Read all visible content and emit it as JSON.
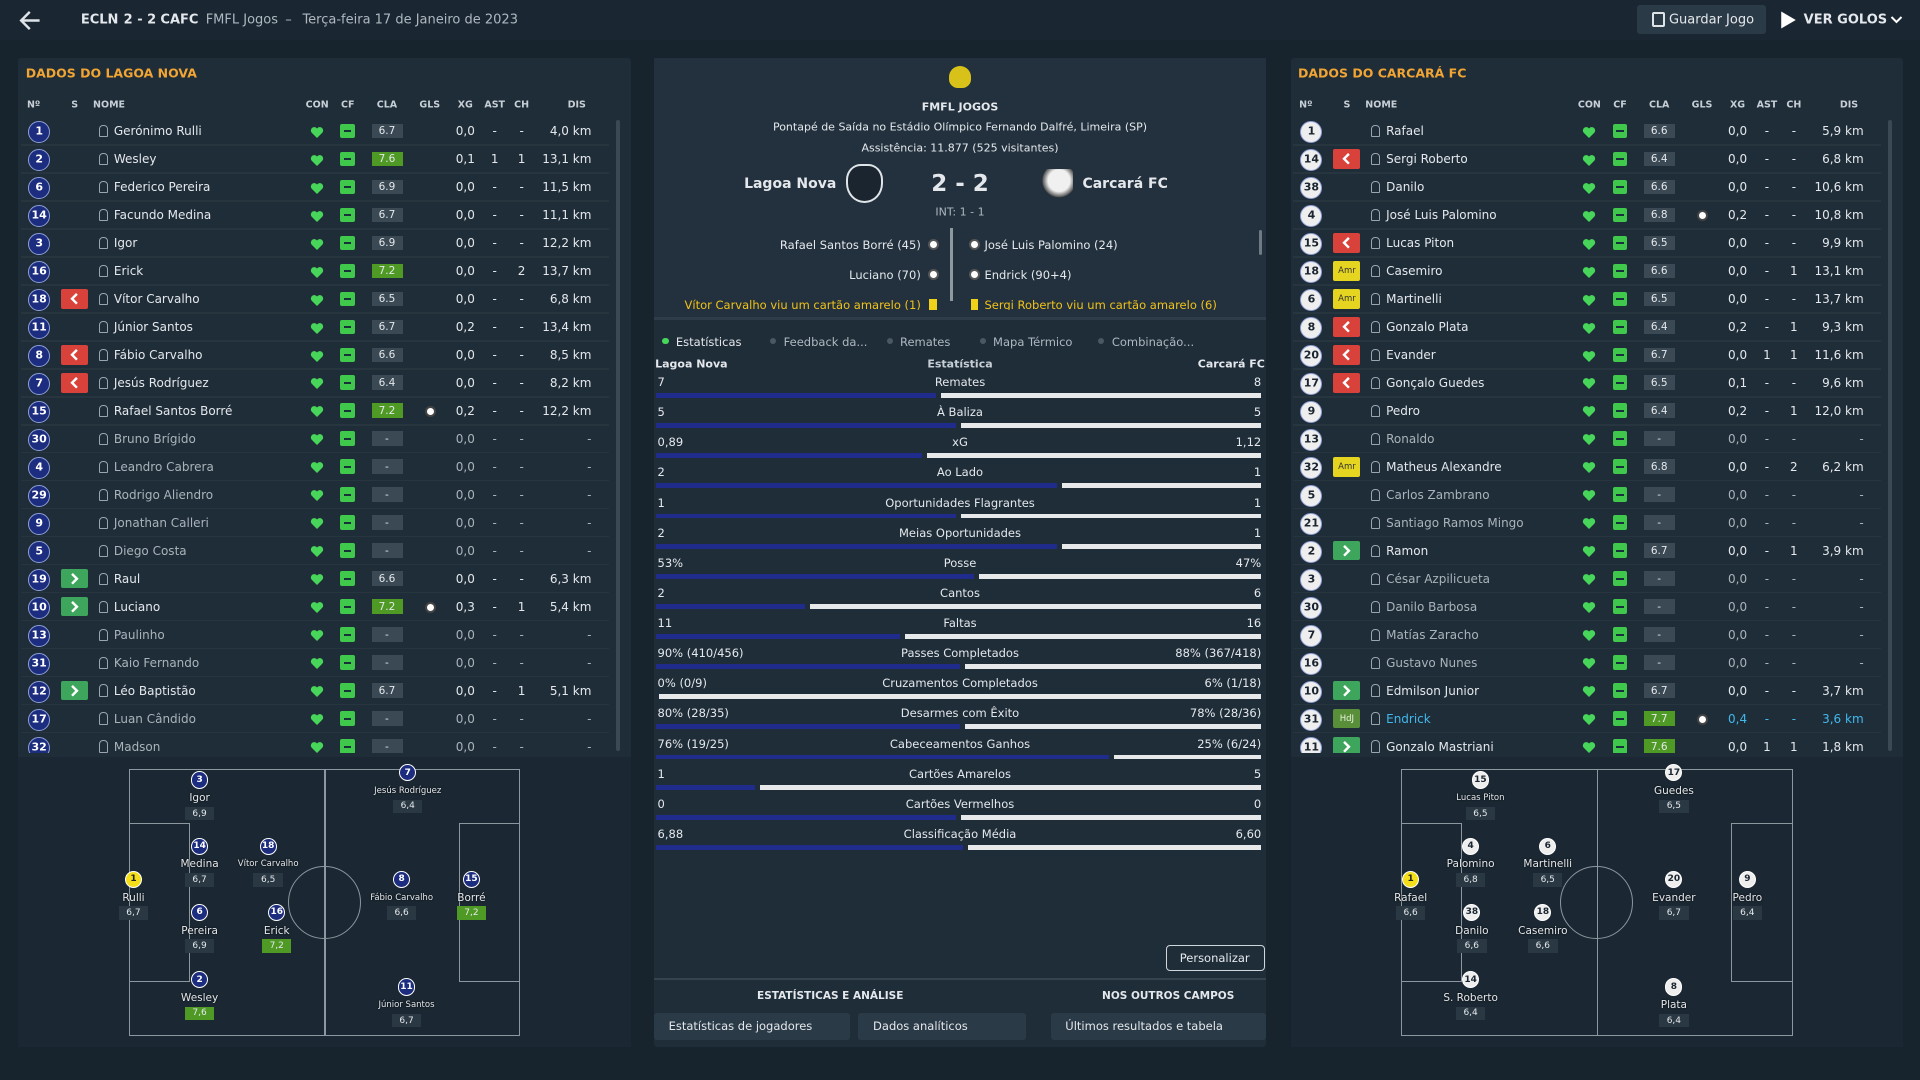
{
  "header": {
    "home_short": "ECLN",
    "score": "2 - 2",
    "away_short": "CAFC",
    "competition": "FMFL Jogos",
    "separator": "–",
    "date": "Terça-feira 17 de Janeiro de 2023",
    "save": "Guardar Jogo",
    "goals": "VER GOLOS"
  },
  "panels": [
    {
      "title": "DADOS DO LAGOA NOVA",
      "badge_fill": "#1c2c7e",
      "badge_text": "#ffffff",
      "columns": [
        "Nº",
        "S",
        "NOME",
        "CON",
        "CF",
        "CLA",
        "GLS",
        "XG",
        "AST",
        "CH",
        "DIS"
      ],
      "rows": [
        {
          "no": "1",
          "name": "Gerónimo Rulli",
          "cla": "6.7",
          "xg": "0,0",
          "ast": "-",
          "ch": "-",
          "dis": "4,0 km"
        },
        {
          "no": "2",
          "name": "Wesley",
          "cla": "7.6",
          "xg": "0,1",
          "ast": "1",
          "ch": "1",
          "dis": "13,1 km"
        },
        {
          "no": "6",
          "name": "Federico Pereira",
          "cla": "6.9",
          "xg": "0,0",
          "ast": "-",
          "ch": "-",
          "dis": "11,5 km"
        },
        {
          "no": "14",
          "name": "Facundo Medina",
          "cla": "6.7",
          "xg": "0,0",
          "ast": "-",
          "ch": "-",
          "dis": "11,1 km"
        },
        {
          "no": "3",
          "name": "Igor",
          "cla": "6.9",
          "xg": "0,0",
          "ast": "-",
          "ch": "-",
          "dis": "12,2 km"
        },
        {
          "no": "16",
          "name": "Erick",
          "cla": "7.2",
          "xg": "0,0",
          "ast": "-",
          "ch": "2",
          "dis": "13,7 km"
        },
        {
          "no": "18",
          "sub": "out",
          "name": "Vítor Carvalho",
          "cla": "6.5",
          "xg": "0,0",
          "ast": "-",
          "ch": "-",
          "dis": "6,8 km"
        },
        {
          "no": "11",
          "name": "Júnior Santos",
          "cla": "6.7",
          "xg": "0,2",
          "ast": "-",
          "ch": "-",
          "dis": "13,4 km"
        },
        {
          "no": "8",
          "sub": "out",
          "name": "Fábio Carvalho",
          "cla": "6.6",
          "xg": "0,0",
          "ast": "-",
          "ch": "-",
          "dis": "8,5 km"
        },
        {
          "no": "7",
          "sub": "out",
          "name": "Jesús Rodríguez",
          "cla": "6.4",
          "xg": "0,0",
          "ast": "-",
          "ch": "-",
          "dis": "8,2 km"
        },
        {
          "no": "15",
          "name": "Rafael Santos Borré",
          "cla": "7.2",
          "goal": true,
          "xg": "0,2",
          "ast": "-",
          "ch": "-",
          "dis": "12,2 km"
        },
        {
          "no": "30",
          "name": "Bruno Brígido",
          "cla": "-",
          "xg": "0,0",
          "ast": "-",
          "ch": "-",
          "dis": "-"
        },
        {
          "no": "4",
          "name": "Leandro Cabrera",
          "cla": "-",
          "xg": "0,0",
          "ast": "-",
          "ch": "-",
          "dis": "-"
        },
        {
          "no": "29",
          "name": "Rodrigo Aliendro",
          "cla": "-",
          "xg": "0,0",
          "ast": "-",
          "ch": "-",
          "dis": "-"
        },
        {
          "no": "9",
          "name": "Jonathan Calleri",
          "cla": "-",
          "xg": "0,0",
          "ast": "-",
          "ch": "-",
          "dis": "-"
        },
        {
          "no": "5",
          "name": "Diego Costa",
          "cla": "-",
          "xg": "0,0",
          "ast": "-",
          "ch": "-",
          "dis": "-"
        },
        {
          "no": "19",
          "sub": "in",
          "name": "Raul",
          "cla": "6.6",
          "xg": "0,0",
          "ast": "-",
          "ch": "-",
          "dis": "6,3 km"
        },
        {
          "no": "10",
          "sub": "in",
          "name": "Luciano",
          "cla": "7.2",
          "goal": true,
          "xg": "0,3",
          "ast": "-",
          "ch": "1",
          "dis": "5,4 km"
        },
        {
          "no": "13",
          "name": "Paulinho",
          "cla": "-",
          "xg": "0,0",
          "ast": "-",
          "ch": "-",
          "dis": "-"
        },
        {
          "no": "31",
          "name": "Kaio Fernando",
          "cla": "-",
          "xg": "0,0",
          "ast": "-",
          "ch": "-",
          "dis": "-"
        },
        {
          "no": "12",
          "sub": "in",
          "name": "Léo Baptistão",
          "cla": "6.7",
          "xg": "0,0",
          "ast": "-",
          "ch": "1",
          "dis": "5,1 km"
        },
        {
          "no": "17",
          "name": "Luan Cândido",
          "cla": "-",
          "xg": "0,0",
          "ast": "-",
          "ch": "-",
          "dis": "-"
        },
        {
          "no": "32",
          "name": "Madson",
          "cla": "-",
          "xg": "0,0",
          "ast": "-",
          "ch": "-",
          "dis": "-"
        }
      ],
      "pitch": [
        {
          "no": "3",
          "name": "Igor",
          "rating": "6,9"
        },
        {
          "no": "7",
          "name": "Jesús Rodríguez",
          "rating": "6,4"
        },
        {
          "no": "14",
          "name": "Medina",
          "rating": "6,7"
        },
        {
          "no": "18",
          "name": "Vítor Carvalho",
          "rating": "6,5"
        },
        {
          "no": "1",
          "name": "Rulli",
          "rating": "6,7",
          "gk": true
        },
        {
          "no": "6",
          "name": "Pereira",
          "rating": "6,9"
        },
        {
          "no": "16",
          "name": "Erick",
          "rating": "7,2"
        },
        {
          "no": "8",
          "name": "Fábio Carvalho",
          "rating": "6,6"
        },
        {
          "no": "15",
          "name": "Borré",
          "rating": "7,2"
        },
        {
          "no": "2",
          "name": "Wesley",
          "rating": "7,6"
        },
        {
          "no": "11",
          "name": "Júnior Santos",
          "rating": "6,7"
        }
      ]
    },
    {
      "title": "DADOS DO CARCARÁ FC",
      "badge_fill": "#eeeeee",
      "badge_text": "#1a2530",
      "columns": [
        "Nº",
        "S",
        "NOME",
        "CON",
        "CF",
        "CLA",
        "GLS",
        "XG",
        "AST",
        "CH",
        "DIS"
      ],
      "rows": [
        {
          "no": "1",
          "name": "Rafael",
          "cla": "6.6",
          "xg": "0,0",
          "ast": "-",
          "ch": "-",
          "dis": "5,9 km"
        },
        {
          "no": "14",
          "sub": "out",
          "name": "Sergi Roberto",
          "cla": "6.4",
          "xg": "0,0",
          "ast": "-",
          "ch": "-",
          "dis": "6,8 km"
        },
        {
          "no": "38",
          "name": "Danilo",
          "cla": "6.6",
          "xg": "0,0",
          "ast": "-",
          "ch": "-",
          "dis": "10,6 km"
        },
        {
          "no": "4",
          "name": "José Luis Palomino",
          "cla": "6.8",
          "goal": true,
          "xg": "0,2",
          "ast": "-",
          "ch": "-",
          "dis": "10,8 km"
        },
        {
          "no": "15",
          "sub": "out",
          "name": "Lucas Piton",
          "cla": "6.5",
          "xg": "0,0",
          "ast": "-",
          "ch": "-",
          "dis": "9,9 km"
        },
        {
          "no": "18",
          "badge": "Amr",
          "name": "Casemiro",
          "cla": "6.6",
          "xg": "0,0",
          "ast": "-",
          "ch": "1",
          "dis": "13,1 km"
        },
        {
          "no": "6",
          "badge": "Amr",
          "name": "Martinelli",
          "cla": "6.5",
          "xg": "0,0",
          "ast": "-",
          "ch": "-",
          "dis": "13,7 km"
        },
        {
          "no": "8",
          "sub": "out",
          "name": "Gonzalo Plata",
          "cla": "6.4",
          "xg": "0,2",
          "ast": "-",
          "ch": "1",
          "dis": "9,3 km"
        },
        {
          "no": "20",
          "sub": "out",
          "name": "Evander",
          "cla": "6.7",
          "xg": "0,0",
          "ast": "1",
          "ch": "1",
          "dis": "11,6 km"
        },
        {
          "no": "17",
          "sub": "out",
          "name": "Gonçalo Guedes",
          "cla": "6.5",
          "xg": "0,1",
          "ast": "-",
          "ch": "-",
          "dis": "9,6 km"
        },
        {
          "no": "9",
          "name": "Pedro",
          "cla": "6.4",
          "xg": "0,2",
          "ast": "-",
          "ch": "1",
          "dis": "12,0 km"
        },
        {
          "no": "13",
          "name": "Ronaldo",
          "cla": "-",
          "xg": "0,0",
          "ast": "-",
          "ch": "-",
          "dis": "-"
        },
        {
          "no": "32",
          "badge": "Amr",
          "name": "Matheus Alexandre",
          "cla": "6.8",
          "xg": "0,0",
          "ast": "-",
          "ch": "2",
          "dis": "6,2 km"
        },
        {
          "no": "5",
          "name": "Carlos Zambrano",
          "cla": "-",
          "xg": "0,0",
          "ast": "-",
          "ch": "-",
          "dis": "-"
        },
        {
          "no": "21",
          "name": "Santiago Ramos Mingo",
          "cla": "-",
          "xg": "0,0",
          "ast": "-",
          "ch": "-",
          "dis": "-"
        },
        {
          "no": "2",
          "sub": "in",
          "name": "Ramon",
          "cla": "6.7",
          "xg": "0,0",
          "ast": "-",
          "ch": "1",
          "dis": "3,9 km"
        },
        {
          "no": "3",
          "name": "César Azpilicueta",
          "cla": "-",
          "xg": "0,0",
          "ast": "-",
          "ch": "-",
          "dis": "-"
        },
        {
          "no": "30",
          "name": "Danilo Barbosa",
          "cla": "-",
          "xg": "0,0",
          "ast": "-",
          "ch": "-",
          "dis": "-"
        },
        {
          "no": "7",
          "name": "Matías Zaracho",
          "cla": "-",
          "xg": "0,0",
          "ast": "-",
          "ch": "-",
          "dis": "-"
        },
        {
          "no": "16",
          "name": "Gustavo Nunes",
          "cla": "-",
          "xg": "0,0",
          "ast": "-",
          "ch": "-",
          "dis": "-"
        },
        {
          "no": "10",
          "sub": "in",
          "name": "Edmilson Junior",
          "cla": "6.7",
          "xg": "0,0",
          "ast": "-",
          "ch": "-",
          "dis": "3,7 km"
        },
        {
          "no": "31",
          "badge": "HdJ",
          "color": "#41b8ec",
          "name": "Endrick",
          "cla": "7.7",
          "goal": true,
          "xg": "0,4",
          "ast": "-",
          "ch": "-",
          "dis": "3,6 km"
        },
        {
          "no": "11",
          "sub": "in",
          "name": "Gonzalo Mastriani",
          "cla": "7.6",
          "xg": "0,0",
          "ast": "1",
          "ch": "1",
          "dis": "1,8 km"
        }
      ],
      "pitch": [
        {
          "no": "15",
          "name": "Lucas Piton",
          "rating": "6,5"
        },
        {
          "no": "17",
          "name": "Guedes",
          "rating": "6,5"
        },
        {
          "no": "4",
          "name": "Palomino",
          "rating": "6,8"
        },
        {
          "no": "6",
          "name": "Martinelli",
          "rating": "6,5"
        },
        {
          "no": "1",
          "name": "Rafael",
          "rating": "6,6",
          "gk": true
        },
        {
          "no": "38",
          "name": "Danilo",
          "rating": "6,6"
        },
        {
          "no": "18",
          "name": "Casemiro",
          "rating": "6,6"
        },
        {
          "no": "20",
          "name": "Evander",
          "rating": "6,7"
        },
        {
          "no": "9",
          "name": "Pedro",
          "rating": "6,4"
        },
        {
          "no": "14",
          "name": "S. Roberto",
          "rating": "6,4"
        },
        {
          "no": "8",
          "name": "Plata",
          "rating": "6,4"
        }
      ]
    }
  ],
  "match": {
    "competition": "FMFL JOGOS",
    "venue": "Pontapé de Saída no Estádio Olímpico Fernando Dalfré, Limeira (SP)",
    "attendance": "Assistência: 11.877 (525 visitantes)",
    "home": "Lagoa Nova",
    "score": "2 - 2",
    "away": "Carcará FC",
    "half_time": "INT: 1 - 1",
    "home_events": [
      {
        "text": "Rafael Santos Borré (45)",
        "kind": "goal"
      },
      {
        "text": "Luciano (70)",
        "kind": "goal"
      },
      {
        "text": "Vítor Carvalho viu um cartão amarelo (1)",
        "kind": "card"
      }
    ],
    "away_events": [
      {
        "text": "José Luis Palomino (24)",
        "kind": "goal"
      },
      {
        "text": "Endrick (90+4)",
        "kind": "goal"
      },
      {
        "text": "Sergi Roberto viu um cartão amarelo (6)",
        "kind": "card"
      }
    ]
  },
  "tabs": [
    "Estatísticas",
    "Feedback da...",
    "Remates",
    "Mapa Térmico",
    "Combinação..."
  ],
  "stats": {
    "home": "Lagoa Nova",
    "heading": "Estatística",
    "away": "Carcará FC",
    "home_color": "#1f2c8c",
    "away_color": "#e6e8ea",
    "rows": [
      {
        "name": "Remates",
        "home": 7,
        "away": 8
      },
      {
        "name": "À Baliza",
        "home": 5,
        "away": 5
      },
      {
        "name": "xG",
        "home": 0.89,
        "home_label": "0,89",
        "away": 1.12,
        "away_label": "1,12"
      },
      {
        "name": "Ao Lado",
        "home": 2,
        "away": 1
      },
      {
        "name": "Oportunidades Flagrantes",
        "home": 1,
        "away": 1
      },
      {
        "name": "Meias Oportunidades",
        "home": 2,
        "away": 1
      },
      {
        "name": "Posse",
        "home": 53,
        "home_label": "53%",
        "away": 47,
        "away_label": "47%"
      },
      {
        "name": "Cantos",
        "home": 2,
        "away": 6
      },
      {
        "name": "Faltas",
        "home": 11,
        "away": 16
      },
      {
        "name": "Passes Completados",
        "home": 90,
        "home_label": "90% (410/456)",
        "away": 88,
        "away_label": "88% (367/418)"
      },
      {
        "name": "Cruzamentos Completados",
        "home": 0,
        "home_label": "0% (0/9)",
        "away": 6,
        "away_label": "6% (1/18)"
      },
      {
        "name": "Desarmes com Êxito",
        "home": 80,
        "home_label": "80% (28/35)",
        "away": 78,
        "away_label": "78% (28/36)"
      },
      {
        "name": "Cabeceamentos Ganhos",
        "home": 76,
        "home_label": "76% (19/25)",
        "away": 25,
        "away_label": "25% (6/24)"
      },
      {
        "name": "Cartões Amarelos",
        "home": 1,
        "away": 5
      },
      {
        "name": "Cartões Vermelhos",
        "home": 0,
        "away": 0
      },
      {
        "name": "Classificação Média",
        "home": 6.88,
        "home_label": "6,88",
        "away": 6.6,
        "away_label": "6,60"
      }
    ]
  },
  "footer": {
    "customize": "Personalizar",
    "analysis": "ESTATÍSTICAS E ANÁLISE",
    "other": "NOS OUTROS CAMPOS",
    "buttons": [
      "Estatísticas de jogadores",
      "Dados analíticos",
      "Últimos resultados e tabela"
    ]
  }
}
